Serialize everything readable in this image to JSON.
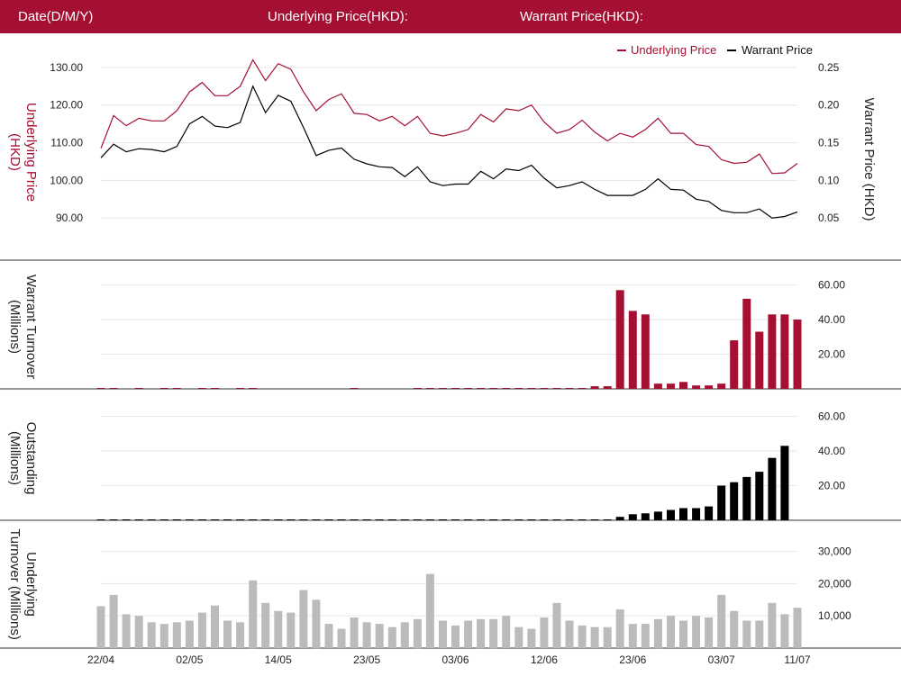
{
  "header": {
    "date_label": "Date(D/M/Y)",
    "underlying_label": "Underlying Price(HKD):",
    "warrant_label": "Warrant Price(HKD):"
  },
  "colors": {
    "underlying": "#a50f32",
    "warrant": "#000000",
    "underlying_turnover": "#bbbbbb",
    "header_bg": "#a50f32"
  },
  "chart_data": [
    {
      "type": "line",
      "legend": [
        "Underlying Price",
        "Warrant Price"
      ],
      "legend_position": "top-right",
      "ylabel_left": "Underlying Price (HKD)",
      "ylabel_right": "Warrant  Price (HKD)",
      "ylim_left": [
        80,
        135
      ],
      "ylim_right": [
        0,
        0.275
      ],
      "yticks_left": [
        "90.00",
        "100.00",
        "110.00",
        "120.00",
        "130.00"
      ],
      "yticks_right": [
        "0.05",
        "0.10",
        "0.15",
        "0.20",
        "0.25"
      ],
      "series": [
        {
          "name": "Underlying Price",
          "axis": "left",
          "values": [
            108.5,
            117.2,
            114.5,
            116.5,
            115.8,
            115.8,
            118.5,
            123.5,
            126.0,
            122.5,
            122.5,
            125.0,
            132.0,
            126.5,
            131.0,
            129.5,
            123.5,
            118.5,
            121.5,
            123.0,
            117.8,
            117.5,
            115.8,
            117.0,
            114.5,
            117.0,
            112.5,
            111.8,
            112.5,
            113.5,
            117.5,
            115.5,
            119.0,
            118.5,
            120.0,
            115.5,
            112.5,
            113.5,
            116.0,
            112.8,
            110.5,
            112.5,
            111.5,
            113.5,
            116.5,
            112.5,
            112.5,
            109.5,
            109.0,
            105.5,
            104.5,
            104.8,
            107.0,
            101.8,
            102.0,
            104.5
          ]
        },
        {
          "name": "Warrant Price",
          "axis": "right",
          "values": [
            0.13,
            0.148,
            0.138,
            0.142,
            0.141,
            0.138,
            0.145,
            0.175,
            0.185,
            0.172,
            0.17,
            0.177,
            0.225,
            0.19,
            0.213,
            0.205,
            0.17,
            0.133,
            0.14,
            0.143,
            0.128,
            0.122,
            0.118,
            0.117,
            0.105,
            0.118,
            0.098,
            0.093,
            0.095,
            0.095,
            0.112,
            0.102,
            0.115,
            0.113,
            0.12,
            0.103,
            0.09,
            0.093,
            0.098,
            0.088,
            0.08,
            0.08,
            0.08,
            0.088,
            0.102,
            0.088,
            0.087,
            0.075,
            0.072,
            0.06,
            0.057,
            0.057,
            0.062,
            0.05,
            0.052,
            0.058
          ]
        }
      ]
    },
    {
      "type": "bar",
      "ylabel": "Warrant  Turnover (Millions)",
      "ylim": [
        0,
        66
      ],
      "yticks": [
        "20.00",
        "40.00",
        "60.00"
      ],
      "values": [
        0.5,
        0.5,
        0,
        0.5,
        0,
        0.5,
        0.5,
        0,
        0.5,
        0.5,
        0,
        0.5,
        0.5,
        0,
        0,
        0,
        0,
        0,
        0,
        0,
        0.5,
        0,
        0,
        0,
        0,
        0.5,
        0.5,
        0.5,
        0.5,
        0.5,
        0.5,
        0.5,
        0.5,
        0.5,
        0.5,
        0.5,
        0.5,
        0.5,
        0.5,
        1.5,
        1.5,
        57,
        45,
        43,
        3,
        3,
        4,
        2,
        2,
        3,
        28,
        52,
        33,
        43,
        43,
        40
      ]
    },
    {
      "type": "bar",
      "ylabel": "Outstanding (Millions)",
      "ylim": [
        0,
        66
      ],
      "yticks": [
        "20.00",
        "40.00",
        "60.00"
      ],
      "values": [
        0.5,
        0.5,
        0.5,
        0.5,
        0.5,
        0.5,
        0.5,
        0.5,
        0.5,
        0.5,
        0.5,
        0.5,
        0.5,
        0.5,
        0.5,
        0.5,
        0.5,
        0.5,
        0.5,
        0.5,
        0.5,
        0.5,
        0.5,
        0.5,
        0.5,
        0.5,
        0.5,
        0.5,
        0.5,
        0.5,
        0.5,
        0.5,
        0.5,
        0.5,
        0.5,
        0.5,
        0.5,
        0.5,
        0.5,
        0.5,
        0.5,
        2,
        3.5,
        4,
        5,
        6,
        7,
        7,
        8,
        20,
        22,
        25,
        28,
        36,
        43
      ]
    },
    {
      "type": "bar",
      "ylabel": "Underlying Turnover (Millions)",
      "ylim": [
        0,
        36000
      ],
      "yticks": [
        "10,000",
        "20,000",
        "30,000"
      ],
      "x_ticks": [
        "22/04",
        "02/05",
        "14/05",
        "23/05",
        "03/06",
        "12/06",
        "23/06",
        "03/07",
        "11/07"
      ],
      "values": [
        13000,
        16500,
        10500,
        10000,
        8000,
        7500,
        8000,
        8500,
        11000,
        13200,
        8500,
        8000,
        21000,
        14000,
        11500,
        11000,
        18000,
        15000,
        7500,
        6000,
        9500,
        8000,
        7500,
        6500,
        8000,
        9000,
        23000,
        8500,
        7000,
        8500,
        9000,
        9000,
        10000,
        6500,
        6000,
        9500,
        14000,
        8500,
        7000,
        6500,
        6500,
        12000,
        7500,
        7500,
        9000,
        10000,
        8500,
        10000,
        9500,
        16500,
        11500,
        8500,
        8500,
        14000,
        10500,
        12500
      ]
    }
  ]
}
